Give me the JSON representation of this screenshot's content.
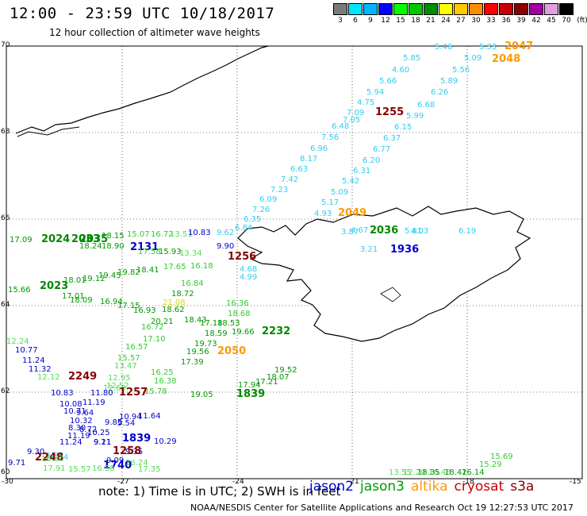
{
  "header": {
    "title": "12:00 - 23:59 UTC 10/18/2017",
    "subtitle": "12 hour collection of altimeter wave heights"
  },
  "color_scale": {
    "unit": "(ft)",
    "labels": [
      "3",
      "6",
      "9",
      "12",
      "15",
      "18",
      "21",
      "24",
      "27",
      "30",
      "33",
      "36",
      "39",
      "42",
      "45",
      "70"
    ],
    "colors": [
      "#7a7a7a",
      "#00e5ff",
      "#00b7ff",
      "#0000ff",
      "#00ff00",
      "#00c800",
      "#008c00",
      "#ffff00",
      "#ffc800",
      "#ff8c00",
      "#ff0000",
      "#c80000",
      "#8c0000",
      "#a000a0",
      "#e0a0e0",
      "#000000"
    ]
  },
  "axes": {
    "x_ticks": [
      "-30",
      "-27",
      "-24",
      "-21",
      "-18",
      "-15"
    ],
    "y_ticks": [
      "70",
      "68",
      "66",
      "64",
      "62",
      "60"
    ]
  },
  "labels": [
    {
      "t": "5.46",
      "c": "#33ccee"
    },
    {
      "t": "5.33",
      "c": "#33ccee"
    },
    {
      "t": "2047",
      "c": "#ff9900",
      "b": 1
    },
    {
      "t": "5.85",
      "c": "#33ccee"
    },
    {
      "t": "5.09",
      "c": "#33ccee"
    },
    {
      "t": "2048",
      "c": "#ff9900",
      "b": 1
    },
    {
      "t": "4.60",
      "c": "#33ccee"
    },
    {
      "t": "5.56",
      "c": "#33ccee"
    },
    {
      "t": "5.66",
      "c": "#33ccee"
    },
    {
      "t": "5.89",
      "c": "#33ccee"
    },
    {
      "t": "5.94",
      "c": "#33ccee"
    },
    {
      "t": "6.26",
      "c": "#33ccee"
    },
    {
      "t": "4.75",
      "c": "#33ccee"
    },
    {
      "t": "6.68",
      "c": "#33ccee"
    },
    {
      "t": "1255",
      "c": "#880000",
      "b": 1
    },
    {
      "t": "7.09",
      "c": "#33ccee"
    },
    {
      "t": "7.05",
      "c": "#33ccee"
    },
    {
      "t": "5.99",
      "c": "#33ccee"
    },
    {
      "t": "6.48",
      "c": "#33ccee"
    },
    {
      "t": "6.15",
      "c": "#33ccee"
    },
    {
      "t": "7.56",
      "c": "#33ccee"
    },
    {
      "t": "6.37",
      "c": "#33ccee"
    },
    {
      "t": "6.96",
      "c": "#33ccee"
    },
    {
      "t": "6.77",
      "c": "#33ccee"
    },
    {
      "t": "8.17",
      "c": "#33ccee"
    },
    {
      "t": "6.20",
      "c": "#33ccee"
    },
    {
      "t": "6.63",
      "c": "#33ccee"
    },
    {
      "t": "6.31",
      "c": "#33ccee"
    },
    {
      "t": "7.42",
      "c": "#33ccee"
    },
    {
      "t": "5.42",
      "c": "#33ccee"
    },
    {
      "t": "7.23",
      "c": "#33ccee"
    },
    {
      "t": "5.09",
      "c": "#33ccee"
    },
    {
      "t": "6.09",
      "c": "#33ccee"
    },
    {
      "t": "5.17",
      "c": "#33ccee"
    },
    {
      "t": "7.26",
      "c": "#33ccee"
    },
    {
      "t": "4.93",
      "c": "#33ccee"
    },
    {
      "t": "2049",
      "c": "#ff9900",
      "b": 1
    },
    {
      "t": "6.35",
      "c": "#33ccee"
    },
    {
      "t": "6.84",
      "c": "#33ccee"
    },
    {
      "t": "3.87",
      "c": "#33ccee"
    },
    {
      "t": "4.67",
      "c": "#33ccee"
    },
    {
      "t": "2036",
      "c": "#008800",
      "b": 1
    },
    {
      "t": "5.81",
      "c": "#33ccee"
    },
    {
      "t": "4.03",
      "c": "#33ccee"
    },
    {
      "t": "6.19",
      "c": "#33ccee"
    },
    {
      "t": "3.21",
      "c": "#33ccee"
    },
    {
      "t": "1936",
      "c": "#0000cc",
      "b": 1
    },
    {
      "t": "17.09",
      "c": "#009900"
    },
    {
      "t": "2024",
      "c": "#008800",
      "b": 1
    },
    {
      "t": "2033",
      "c": "#008800",
      "b": 1
    },
    {
      "t": "2035",
      "c": "#008800",
      "b": 1
    },
    {
      "t": "18.15",
      "c": "#009900"
    },
    {
      "t": "15.07",
      "c": "#33cc33"
    },
    {
      "t": "16.72",
      "c": "#33cc33"
    },
    {
      "t": "13.51",
      "c": "#55dd55"
    },
    {
      "t": "10.83",
      "c": "#0000cc"
    },
    {
      "t": "9.62",
      "c": "#33ccee"
    },
    {
      "t": "18.24",
      "c": "#009900"
    },
    {
      "t": "18.90",
      "c": "#009900"
    },
    {
      "t": "2131",
      "c": "#0000cc",
      "b": 1
    },
    {
      "t": "17.58",
      "c": "#33cc33"
    },
    {
      "t": "15.93",
      "c": "#009900"
    },
    {
      "t": "13.34",
      "c": "#55dd55"
    },
    {
      "t": "9.90",
      "c": "#0000cc"
    },
    {
      "t": "1256",
      "c": "#880000",
      "b": 1
    },
    {
      "t": "16.18",
      "c": "#33cc33"
    },
    {
      "t": "4.68",
      "c": "#33ccee"
    },
    {
      "t": "4.99",
      "c": "#33ccee"
    },
    {
      "t": "15.66",
      "c": "#009900"
    },
    {
      "t": "2023",
      "c": "#008800",
      "b": 1
    },
    {
      "t": "18.01",
      "c": "#009900"
    },
    {
      "t": "19.12",
      "c": "#009900"
    },
    {
      "t": "19.45",
      "c": "#009900"
    },
    {
      "t": "19.82",
      "c": "#009900"
    },
    {
      "t": "18.41",
      "c": "#009900"
    },
    {
      "t": "17.65",
      "c": "#33cc33"
    },
    {
      "t": "16.84",
      "c": "#33cc33"
    },
    {
      "t": "17.01",
      "c": "#009900"
    },
    {
      "t": "18.72",
      "c": "#009900"
    },
    {
      "t": "18.09",
      "c": "#009900"
    },
    {
      "t": "16.94",
      "c": "#009900"
    },
    {
      "t": "17.15",
      "c": "#009900"
    },
    {
      "t": "21.08",
      "c": "#dddd00"
    },
    {
      "t": "16.93",
      "c": "#009900"
    },
    {
      "t": "18.62",
      "c": "#009900"
    },
    {
      "t": "20.21",
      "c": "#009900"
    },
    {
      "t": "18.43",
      "c": "#009900"
    },
    {
      "t": "17.18",
      "c": "#009900"
    },
    {
      "t": "18.53",
      "c": "#009900"
    },
    {
      "t": "16.36",
      "c": "#33cc33"
    },
    {
      "t": "18.68",
      "c": "#33cc33"
    },
    {
      "t": "16.72",
      "c": "#33cc33"
    },
    {
      "t": "18.59",
      "c": "#009900"
    },
    {
      "t": "19.66",
      "c": "#009900"
    },
    {
      "t": "2232",
      "c": "#008800",
      "b": 1
    },
    {
      "t": "12.24",
      "c": "#55dd55"
    },
    {
      "t": "17.10",
      "c": "#33cc33"
    },
    {
      "t": "10.77",
      "c": "#0000cc"
    },
    {
      "t": "19.73",
      "c": "#009900"
    },
    {
      "t": "16.57",
      "c": "#33cc33"
    },
    {
      "t": "19.56",
      "c": "#009900"
    },
    {
      "t": "2050",
      "c": "#ff9900",
      "b": 1
    },
    {
      "t": "11.24",
      "c": "#0000cc"
    },
    {
      "t": "15.57",
      "c": "#33cc33"
    },
    {
      "t": "17.39",
      "c": "#009900"
    },
    {
      "t": "11.32",
      "c": "#0000cc"
    },
    {
      "t": "13.47",
      "c": "#55dd55"
    },
    {
      "t": "16.25",
      "c": "#33cc33"
    },
    {
      "t": "12.12",
      "c": "#55dd55"
    },
    {
      "t": "2249",
      "c": "#880000",
      "b": 1
    },
    {
      "t": "12.95",
      "c": "#55dd55"
    },
    {
      "t": "16.38",
      "c": "#33cc33"
    },
    {
      "t": "12.63",
      "c": "#55dd55"
    },
    {
      "t": "12.52",
      "c": "#55dd55"
    },
    {
      "t": "15.78",
      "c": "#33cc33"
    },
    {
      "t": "10.83",
      "c": "#0000cc"
    },
    {
      "t": "11.80",
      "c": "#0000cc"
    },
    {
      "t": "1257",
      "c": "#880000",
      "b": 1
    },
    {
      "t": "19.05",
      "c": "#009900"
    },
    {
      "t": "1839",
      "c": "#008800",
      "b": 1
    },
    {
      "t": "19.52",
      "c": "#009900"
    },
    {
      "t": "17.21",
      "c": "#009900"
    },
    {
      "t": "17.94",
      "c": "#009900"
    },
    {
      "t": "18.07",
      "c": "#009900"
    },
    {
      "t": "10.08",
      "c": "#0000cc"
    },
    {
      "t": "11.19",
      "c": "#0000cc"
    },
    {
      "t": "10.71",
      "c": "#0000cc"
    },
    {
      "t": "9.64",
      "c": "#0000cc"
    },
    {
      "t": "10.94",
      "c": "#0000cc"
    },
    {
      "t": "11.64",
      "c": "#0000cc"
    },
    {
      "t": "10.32",
      "c": "#0000cc"
    },
    {
      "t": "8.30",
      "c": "#0000cc"
    },
    {
      "t": "8.72",
      "c": "#0000cc"
    },
    {
      "t": "10.25",
      "c": "#0000cc"
    },
    {
      "t": "9.85",
      "c": "#0000cc"
    },
    {
      "t": "11.19",
      "c": "#0000cc"
    },
    {
      "t": "9.21",
      "c": "#0000cc"
    },
    {
      "t": "9.54",
      "c": "#0000cc"
    },
    {
      "t": "11.24",
      "c": "#0000cc"
    },
    {
      "t": "9.11",
      "c": "#0000cc"
    },
    {
      "t": "1839",
      "c": "#0000cc",
      "b": 1
    },
    {
      "t": "9.30",
      "c": "#0000cc"
    },
    {
      "t": "9.35",
      "c": "#0000cc"
    },
    {
      "t": "10.29",
      "c": "#0000cc"
    },
    {
      "t": "6.84",
      "c": "#33ccee"
    },
    {
      "t": "8.34",
      "c": "#33ccee"
    },
    {
      "t": "1258",
      "c": "#880000",
      "b": 1
    },
    {
      "t": "9.09",
      "c": "#0000cc"
    },
    {
      "t": "9.71",
      "c": "#0000cc"
    },
    {
      "t": "2248",
      "c": "#880000",
      "b": 1
    },
    {
      "t": "1740",
      "c": "#0000cc",
      "b": 1
    },
    {
      "t": "16.24",
      "c": "#55dd55"
    },
    {
      "t": "16.80",
      "c": "#55dd55"
    },
    {
      "t": "17.91",
      "c": "#55dd55"
    },
    {
      "t": "16.58",
      "c": "#55dd55"
    },
    {
      "t": "15.57",
      "c": "#55dd55"
    },
    {
      "t": "17.35",
      "c": "#55dd55"
    },
    {
      "t": "16.48",
      "c": "#55dd55"
    },
    {
      "t": "13.55",
      "c": "#55dd55"
    },
    {
      "t": "12.20",
      "c": "#55dd55"
    },
    {
      "t": "18.35",
      "c": "#009900"
    },
    {
      "t": "18.42",
      "c": "#009900"
    },
    {
      "t": "16.14",
      "c": "#009900"
    },
    {
      "t": "15.29",
      "c": "#33cc33"
    },
    {
      "t": "15.69",
      "c": "#33cc33"
    }
  ],
  "footer": {
    "note": "note:  1) Time is in UTC; 2) SWH is in feet",
    "credit": "NOAA/NESDIS Center for Satellite Applications and Research    Oct 19 12:27:53 UTC 2017",
    "satellites": [
      {
        "name": "jason2",
        "color": "#0000cc"
      },
      {
        "name": "jason3",
        "color": "#009900"
      },
      {
        "name": "altika",
        "color": "#ff9900"
      },
      {
        "name": "cryosat",
        "color": "#cc0000"
      },
      {
        "name": "s3a",
        "color": "#880000"
      }
    ]
  }
}
